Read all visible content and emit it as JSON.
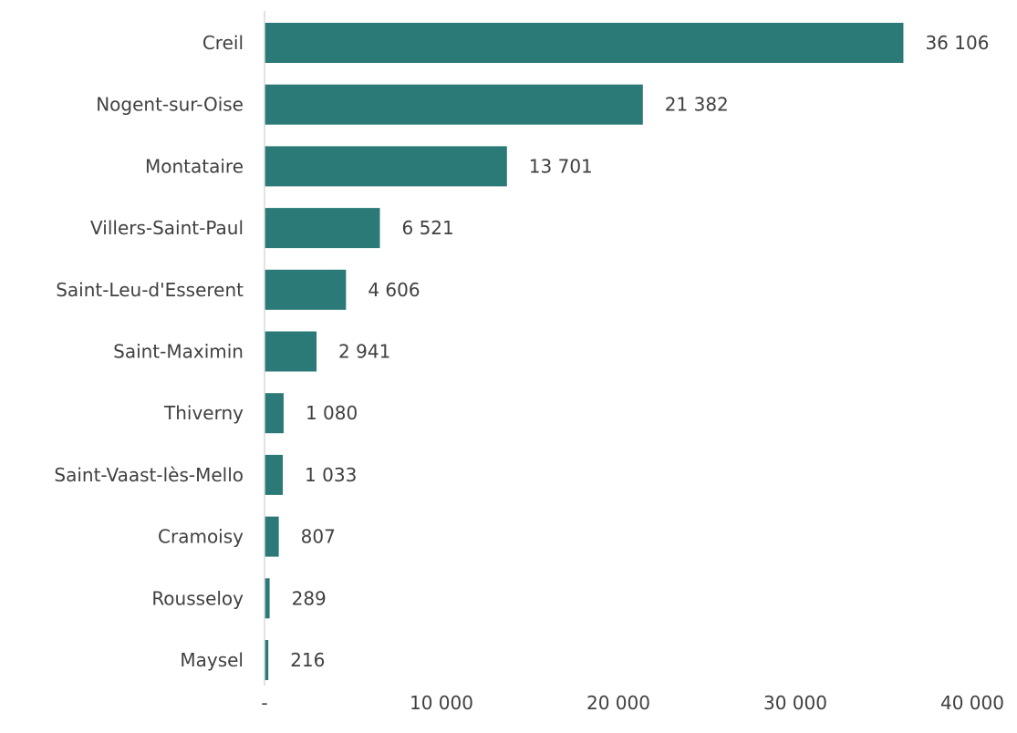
{
  "chart_data": {
    "type": "bar",
    "orientation": "horizontal",
    "categories": [
      "Creil",
      "Nogent-sur-Oise",
      "Montataire",
      "Villers-Saint-Paul",
      "Saint-Leu-d'Esserent",
      "Saint-Maximin",
      "Thiverny",
      "Saint-Vaast-lès-Mello",
      "Cramoisy",
      "Rousseloy",
      "Maysel"
    ],
    "values": [
      36106,
      21382,
      13701,
      6521,
      4606,
      2941,
      1080,
      1033,
      807,
      289,
      216
    ],
    "value_labels": [
      "36 106",
      "21 382",
      "13 701",
      "6 521",
      "4 606",
      "2 941",
      "1 080",
      "1 033",
      "807",
      "289",
      "216"
    ],
    "xlim": [
      0,
      40000
    ],
    "x_ticks": [
      0,
      10000,
      20000,
      30000,
      40000
    ],
    "x_tick_labels": [
      "-",
      "10 000",
      "20 000",
      "30 000",
      "40 000"
    ],
    "grid": false,
    "legend": "none",
    "colors": {
      "bar": "#2b7a78",
      "text": "#404040",
      "axis": "#d9d9d9"
    }
  }
}
